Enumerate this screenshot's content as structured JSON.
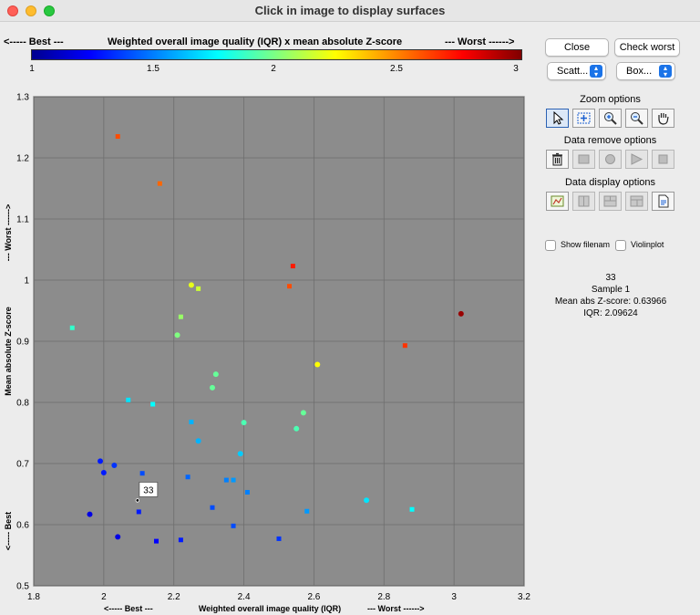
{
  "window": {
    "title": "Click in image to display surfaces"
  },
  "colorbar": {
    "header_best": "<----- Best ---",
    "header_title": "Weighted overall image quality (IQR) x mean absolute Z-score",
    "header_worst": "--- Worst ------>",
    "ticks": [
      "1",
      "1.5",
      "2",
      "2.5",
      "3"
    ]
  },
  "buttons": {
    "close": "Close",
    "check_worst": "Check worst"
  },
  "selects": {
    "plot_type": "Scatt...",
    "plot_style": "Box..."
  },
  "sections": {
    "zoom": "Zoom options",
    "remove": "Data remove options",
    "display": "Data display options"
  },
  "toolbar": {
    "zoom_tools": [
      "pointer-icon",
      "zoom-fit-icon",
      "zoom-in-icon",
      "zoom-out-icon",
      "pan-hand-icon"
    ],
    "remove_tools": [
      "trash-icon",
      "remove-box-icon",
      "remove-circle-icon",
      "remove-arrow-icon",
      "remove-square-icon"
    ],
    "display_tools": [
      "display-chart-icon",
      "display-grid-icon",
      "display-split-icon",
      "display-layout-icon",
      "display-doc-icon"
    ]
  },
  "checkboxes": {
    "show_filename": "Show filenam",
    "violinplot": "Violinplot"
  },
  "info": {
    "id": "33",
    "sample": "Sample 1",
    "zscore": "Mean abs Z-score: 0.63966",
    "iqr": "IQR: 2.09624"
  },
  "chart_data": {
    "type": "scatter",
    "xlabel_best": "<----- Best ---",
    "xlabel": "Weighted overall image quality (IQR)",
    "xlabel_worst": "--- Worst ------>",
    "ylabel_best": "<----- Best",
    "ylabel": "Mean absolute Z-score",
    "ylabel_worst": "--- Worst ------>",
    "xlim": [
      1.8,
      3.2
    ],
    "ylim": [
      0.5,
      1.3
    ],
    "xticks": [
      "1.8",
      "2",
      "2.2",
      "2.4",
      "2.6",
      "2.8",
      "3",
      "3.2"
    ],
    "yticks": [
      "0.5",
      "0.6",
      "0.7",
      "0.8",
      "0.9",
      "1",
      "1.1",
      "1.2",
      "1.3"
    ],
    "grid": true,
    "background": "#8c8c8c",
    "color_range": [
      1,
      3
    ],
    "tooltip": {
      "label": "33",
      "x": 2.09624,
      "y": 0.63966
    },
    "points": [
      {
        "x": 2.04,
        "y": 1.235,
        "c": 2.6,
        "s": "square"
      },
      {
        "x": 2.16,
        "y": 1.158,
        "c": 2.55,
        "s": "square"
      },
      {
        "x": 1.91,
        "y": 0.922,
        "c": 1.85,
        "s": "square"
      },
      {
        "x": 2.25,
        "y": 0.992,
        "c": 2.2,
        "s": "circle"
      },
      {
        "x": 2.27,
        "y": 0.986,
        "c": 2.15,
        "s": "square"
      },
      {
        "x": 2.22,
        "y": 0.94,
        "c": 2.05,
        "s": "square"
      },
      {
        "x": 2.21,
        "y": 0.91,
        "c": 2.0,
        "s": "circle"
      },
      {
        "x": 2.54,
        "y": 1.023,
        "c": 2.7,
        "s": "square"
      },
      {
        "x": 2.53,
        "y": 0.99,
        "c": 2.6,
        "s": "square"
      },
      {
        "x": 3.02,
        "y": 0.945,
        "c": 2.95,
        "s": "circle"
      },
      {
        "x": 2.86,
        "y": 0.893,
        "c": 2.65,
        "s": "square"
      },
      {
        "x": 2.61,
        "y": 0.862,
        "c": 2.25,
        "s": "circle"
      },
      {
        "x": 2.32,
        "y": 0.846,
        "c": 1.95,
        "s": "circle"
      },
      {
        "x": 2.31,
        "y": 0.824,
        "c": 1.95,
        "s": "circle"
      },
      {
        "x": 2.07,
        "y": 0.804,
        "c": 1.7,
        "s": "square"
      },
      {
        "x": 2.14,
        "y": 0.797,
        "c": 1.75,
        "s": "square"
      },
      {
        "x": 2.57,
        "y": 0.783,
        "c": 1.95,
        "s": "circle"
      },
      {
        "x": 2.4,
        "y": 0.767,
        "c": 1.9,
        "s": "circle"
      },
      {
        "x": 2.55,
        "y": 0.757,
        "c": 1.9,
        "s": "circle"
      },
      {
        "x": 2.25,
        "y": 0.768,
        "c": 1.6,
        "s": "square"
      },
      {
        "x": 2.27,
        "y": 0.737,
        "c": 1.6,
        "s": "circle"
      },
      {
        "x": 2.39,
        "y": 0.716,
        "c": 1.65,
        "s": "circle"
      },
      {
        "x": 1.99,
        "y": 0.704,
        "c": 1.3,
        "s": "circle"
      },
      {
        "x": 2.03,
        "y": 0.697,
        "c": 1.35,
        "s": "circle"
      },
      {
        "x": 2.0,
        "y": 0.685,
        "c": 1.3,
        "s": "circle"
      },
      {
        "x": 2.11,
        "y": 0.684,
        "c": 1.4,
        "s": "square"
      },
      {
        "x": 2.24,
        "y": 0.678,
        "c": 1.45,
        "s": "square"
      },
      {
        "x": 2.35,
        "y": 0.673,
        "c": 1.5,
        "s": "square"
      },
      {
        "x": 2.37,
        "y": 0.673,
        "c": 1.55,
        "s": "square"
      },
      {
        "x": 2.41,
        "y": 0.653,
        "c": 1.5,
        "s": "square"
      },
      {
        "x": 2.75,
        "y": 0.64,
        "c": 1.7,
        "s": "circle"
      },
      {
        "x": 2.88,
        "y": 0.625,
        "c": 1.75,
        "s": "square"
      },
      {
        "x": 2.58,
        "y": 0.622,
        "c": 1.55,
        "s": "square"
      },
      {
        "x": 2.31,
        "y": 0.628,
        "c": 1.4,
        "s": "square"
      },
      {
        "x": 2.1,
        "y": 0.621,
        "c": 1.3,
        "s": "square"
      },
      {
        "x": 1.96,
        "y": 0.617,
        "c": 1.2,
        "s": "circle"
      },
      {
        "x": 2.37,
        "y": 0.598,
        "c": 1.4,
        "s": "square"
      },
      {
        "x": 2.04,
        "y": 0.58,
        "c": 1.2,
        "s": "circle"
      },
      {
        "x": 2.15,
        "y": 0.573,
        "c": 1.25,
        "s": "square"
      },
      {
        "x": 2.22,
        "y": 0.575,
        "c": 1.3,
        "s": "square"
      },
      {
        "x": 2.5,
        "y": 0.577,
        "c": 1.35,
        "s": "square"
      }
    ]
  }
}
